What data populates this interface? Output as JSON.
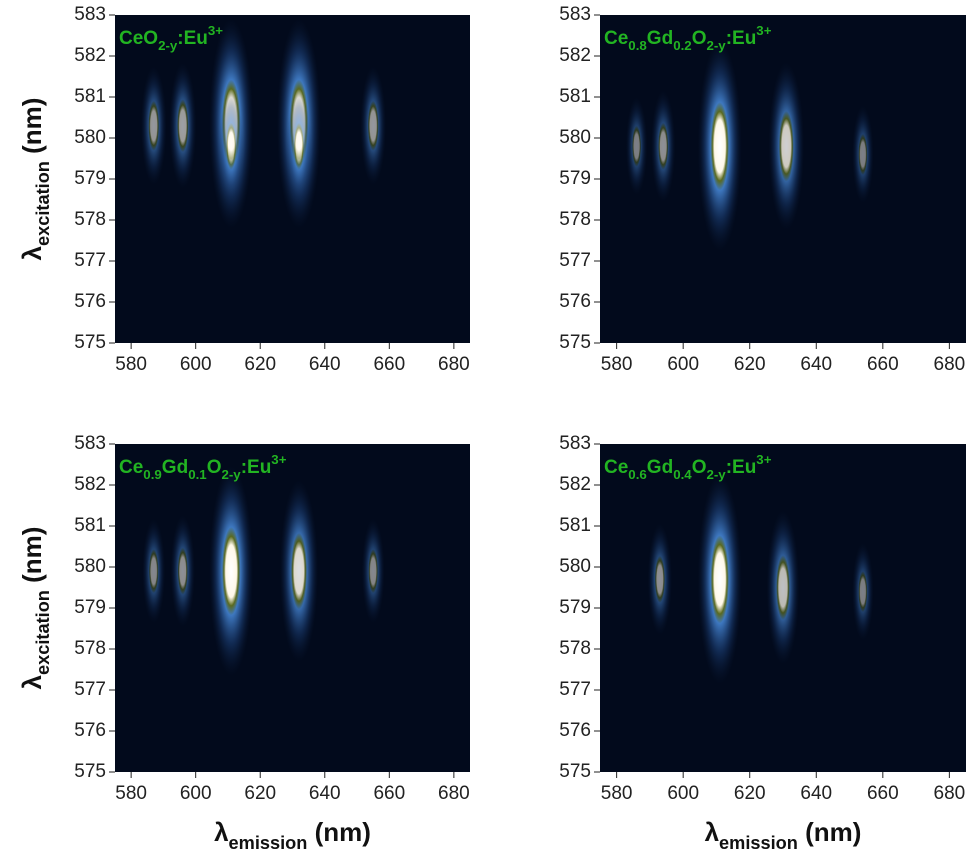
{
  "chart_data": [
    {
      "type": "heatmap",
      "title": [
        "CeO",
        {
          "sub": "2-y"
        },
        ":Eu",
        {
          "sup": "3+"
        }
      ],
      "y_label": [
        "λ",
        {
          "sub": "excitation"
        },
        " (nm)"
      ],
      "xlim": [
        575,
        685
      ],
      "xticks": [
        580,
        600,
        620,
        640,
        660,
        680
      ],
      "ylim": [
        575,
        583
      ],
      "yticks": [
        575,
        576,
        577,
        578,
        579,
        580,
        581,
        582,
        583
      ],
      "peaks": {
        "x": [
          587,
          596,
          611,
          632,
          655,
          611,
          632
        ],
        "y": [
          580.3,
          580.3,
          580.35,
          580.35,
          580.3,
          579.8,
          579.8
        ],
        "values": [
          0.35,
          0.4,
          1,
          1,
          0.35,
          0.3,
          0.3
        ]
      }
    },
    {
      "type": "heatmap",
      "title": [
        "Ce",
        {
          "sub": "0.8"
        },
        "Gd",
        {
          "sub": "0.2"
        },
        "O",
        {
          "sub": "2-y"
        },
        ":Eu",
        {
          "sup": "3+"
        }
      ],
      "xlim": [
        575,
        685
      ],
      "xticks": [
        580,
        600,
        620,
        640,
        660,
        680
      ],
      "ylim": [
        575,
        583
      ],
      "yticks": [
        575,
        576,
        577,
        578,
        579,
        580,
        581,
        582,
        583
      ],
      "peaks": {
        "x": [
          586,
          594,
          611,
          631,
          654
        ],
        "y": [
          579.8,
          579.8,
          579.8,
          579.8,
          579.6
        ],
        "values": [
          0.2,
          0.3,
          1,
          0.7,
          0.2
        ]
      }
    },
    {
      "type": "heatmap",
      "title": [
        "Ce",
        {
          "sub": "0.9"
        },
        "Gd",
        {
          "sub": "0.1"
        },
        "O",
        {
          "sub": "2-y"
        },
        ":Eu",
        {
          "sup": "3+"
        }
      ],
      "y_label": [
        "λ",
        {
          "sub": "excitation"
        },
        " (nm)"
      ],
      "x_label": [
        "λ",
        {
          "sub": "emission"
        },
        " (nm)"
      ],
      "xlim": [
        575,
        685
      ],
      "xticks": [
        580,
        600,
        620,
        640,
        660,
        680
      ],
      "ylim": [
        575,
        583
      ],
      "yticks": [
        575,
        576,
        577,
        578,
        579,
        580,
        581,
        582,
        583
      ],
      "peaks": {
        "x": [
          587,
          596,
          611,
          632,
          655
        ],
        "y": [
          579.9,
          579.9,
          579.9,
          579.9,
          579.9
        ],
        "values": [
          0.25,
          0.3,
          1,
          0.8,
          0.25
        ]
      }
    },
    {
      "type": "heatmap",
      "title": [
        "Ce",
        {
          "sub": "0.6"
        },
        "Gd",
        {
          "sub": "0.4"
        },
        "O",
        {
          "sub": "2-y"
        },
        ":Eu",
        {
          "sup": "3+"
        }
      ],
      "x_label": [
        "λ",
        {
          "sub": "emission"
        },
        " (nm)"
      ],
      "xlim": [
        575,
        685
      ],
      "xticks": [
        580,
        600,
        620,
        640,
        660,
        680
      ],
      "ylim": [
        575,
        583
      ],
      "yticks": [
        575,
        576,
        577,
        578,
        579,
        580,
        581,
        582,
        583
      ],
      "peaks": {
        "x": [
          593,
          611,
          630,
          654
        ],
        "y": [
          579.7,
          579.7,
          579.5,
          579.4
        ],
        "values": [
          0.3,
          1,
          0.6,
          0.2
        ]
      }
    }
  ]
}
